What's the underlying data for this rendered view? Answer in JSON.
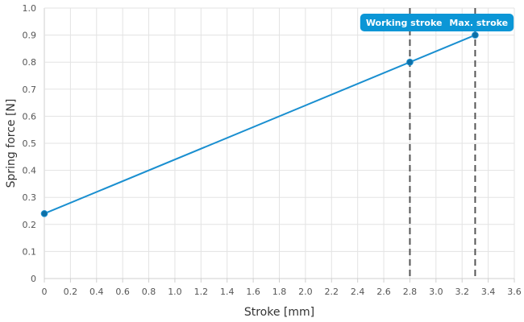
{
  "chart_data": {
    "type": "line",
    "xlabel": "Stroke [mm]",
    "ylabel": "Spring force [N]",
    "xlim": [
      0,
      3.6
    ],
    "ylim": [
      0,
      1.0
    ],
    "xticks": [
      "0",
      "0.2",
      "0.4",
      "0.6",
      "0.8",
      "1.0",
      "1.2",
      "1.4",
      "1.6",
      "1.8",
      "2.0",
      "2.2",
      "2.4",
      "2.6",
      "2.8",
      "3.0",
      "3.2",
      "3.4",
      "3.6"
    ],
    "yticks": [
      "0",
      "0.1",
      "0.2",
      "0.3",
      "0.4",
      "0.5",
      "0.6",
      "0.7",
      "0.8",
      "0.9",
      "1.0"
    ],
    "grid": true,
    "series": [
      {
        "color": "#1a8fd0",
        "points": [
          {
            "x": 0,
            "y": 0.24
          },
          {
            "x": 2.8,
            "y": 0.8
          },
          {
            "x": 3.3,
            "y": 0.9
          }
        ]
      }
    ],
    "markers": [
      {
        "label": "Working stroke",
        "x": 2.8
      },
      {
        "label": "Max. stroke",
        "x": 3.3
      }
    ],
    "marker_label_color": "#0b96d6"
  }
}
